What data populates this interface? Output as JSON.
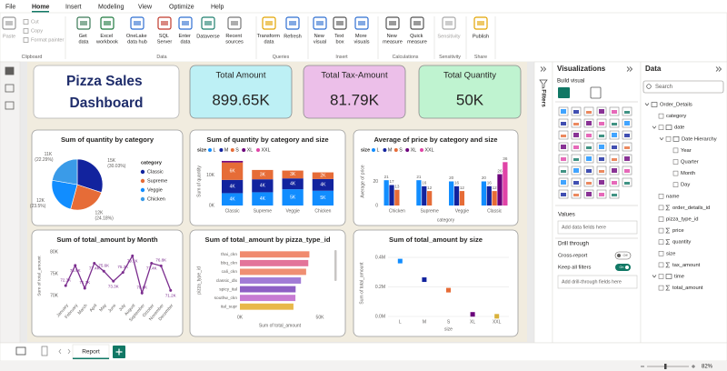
{
  "menu": [
    "File",
    "Home",
    "Insert",
    "Modeling",
    "View",
    "Optimize",
    "Help"
  ],
  "ribbon": {
    "buttons": [
      "Paste",
      "Cut",
      "Copy",
      "Format painter",
      "Get data",
      "Excel workbook",
      "OneLake data hub",
      "SQL Server",
      "Enter data",
      "Dataverse",
      "Recent sources",
      "Transform data",
      "Refresh",
      "New visual",
      "Text box",
      "More visuals",
      "New measure",
      "Quick measure",
      "Sensitivity",
      "Publish"
    ],
    "groups": [
      "Clipboard",
      "Data",
      "Queries",
      "Insert",
      "Calculations",
      "Sensitivity",
      "Share"
    ]
  },
  "dashboard": {
    "title": "Pizza Sales Dashboard",
    "cards": [
      {
        "label": "Total Amount",
        "value": "899.65K",
        "color": "#bdf0f5"
      },
      {
        "label": "Total Tax-Amount",
        "value": "81.79K",
        "color": "#ecbfe9"
      },
      {
        "label": "Total Quantity",
        "value": "50K",
        "color": "#bff3d0"
      }
    ]
  },
  "chart_data": [
    {
      "type": "pie",
      "title": "Sum of quantity by category",
      "legend_title": "category",
      "categories": [
        "Classic",
        "Supreme",
        "Veggie",
        "Chicken"
      ],
      "values": [
        14888,
        11987,
        11650,
        11050
      ],
      "value_labels": [
        "15K (30.03%)",
        "12K (24.18%)",
        "12K (23.5%)",
        "11K (22.29%)"
      ],
      "colors": [
        "#12239e",
        "#e66c37",
        "#118dff",
        "#3a9be8"
      ]
    },
    {
      "type": "column",
      "stacked": true,
      "title": "Sum of quantity by category and size",
      "legend_title": "size",
      "categories": [
        "Classic",
        "Supreme",
        "Veggie",
        "Chicken"
      ],
      "y_label": "Sum of quantity",
      "ylim": [
        0,
        16000
      ],
      "yticks": [
        {
          "value": 0,
          "label": "0K"
        },
        {
          "value": 10000,
          "label": "10K"
        }
      ],
      "grid": false,
      "series": [
        {
          "name": "L",
          "color": "#118dff",
          "values": [
            4100,
            4400,
            5400,
            4900
          ],
          "value_labels": [
            "4K",
            "4K",
            "5K",
            "5K"
          ]
        },
        {
          "name": "M",
          "color": "#12239e",
          "values": [
            4400,
            4300,
            3600,
            3900
          ],
          "value_labels": [
            "4K",
            "4K",
            "4K",
            "4K"
          ]
        },
        {
          "name": "S",
          "color": "#e66c37",
          "values": [
            5800,
            3100,
            2600,
            2200
          ],
          "value_labels": [
            "6K",
            "3K",
            "3K",
            "2K"
          ]
        },
        {
          "name": "XL",
          "color": "#6b007b",
          "values": [
            480,
            null,
            null,
            null
          ]
        },
        {
          "name": "XXL",
          "color": "#e044a7",
          "values": [
            28,
            null,
            null,
            null
          ]
        }
      ]
    },
    {
      "type": "column",
      "stacked": false,
      "title": "Average of price by category and size",
      "legend_title": "size",
      "categories": [
        "Chicken",
        "Supreme",
        "Veggie",
        "Classic"
      ],
      "x_label": "category",
      "y_label": "Average of price",
      "ylim": [
        0,
        40
      ],
      "yticks": [
        0,
        20
      ],
      "grid": false,
      "series": [
        {
          "name": "L",
          "color": "#118dff",
          "values": [
            21,
            21,
            20,
            20
          ]
        },
        {
          "name": "M",
          "color": "#12239e",
          "values": [
            17,
            16,
            16,
            16
          ]
        },
        {
          "name": "S",
          "color": "#e66c37",
          "values": [
            13,
            12,
            12,
            12
          ]
        },
        {
          "name": "XL",
          "color": "#6b007b",
          "values": [
            null,
            null,
            null,
            26
          ]
        },
        {
          "name": "XXL",
          "color": "#e044a7",
          "values": [
            null,
            null,
            null,
            36
          ]
        }
      ]
    },
    {
      "type": "line",
      "title": "Sum of total_amount by Month",
      "categories": [
        "January",
        "February",
        "March",
        "April",
        "May",
        "June",
        "July",
        "August",
        "September",
        "October",
        "November",
        "December"
      ],
      "values": [
        72300,
        76900,
        71700,
        77400,
        75600,
        73300,
        75300,
        79100,
        70600,
        77400,
        76800,
        71200
      ],
      "value_labels": [
        "72.3K",
        "76.9K",
        "71.7K",
        "77.4K",
        "75.6K",
        "73.3K",
        "75.3K",
        "79.1K",
        "70.6K",
        "77.4K",
        "76.8K",
        "71.2K"
      ],
      "color": "#7b2d8e",
      "y_label": "Sum of total_amount",
      "ylim": [
        69000,
        80000
      ],
      "yticks": [
        {
          "value": 70000,
          "label": "70K"
        },
        {
          "value": 75000,
          "label": "75K"
        },
        {
          "value": 80000,
          "label": "80K"
        }
      ],
      "grid": false
    },
    {
      "type": "bar",
      "title": "Sum of total_amount by pizza_type_id",
      "categories": [
        "thai_ckn",
        "bbq_ckn",
        "cali_ckn",
        "classic_dlx",
        "spicy_ital",
        "southw_ckn",
        "ital_supr"
      ],
      "values": [
        43434,
        42768,
        41410,
        38180,
        34831,
        34705,
        33476
      ],
      "colors": [
        "#f08a6e",
        "#e3749a",
        "#ef8f73",
        "#a17bd6",
        "#8e5fc4",
        "#c77bd3",
        "#e8b84a"
      ],
      "x_label": "Sum of total_amount",
      "y_label": "pizza_type_id",
      "xlim": [
        0,
        50000
      ],
      "xticks": [
        {
          "value": 0,
          "label": "0K"
        },
        {
          "value": 50000,
          "label": "50K"
        }
      ],
      "grid": false
    },
    {
      "type": "scatter",
      "title": "Sum of total_amount by size",
      "categories": [
        "L",
        "M",
        "S",
        "XL",
        "XXL"
      ],
      "values": [
        375319,
        249382,
        178076,
        14076,
        1007
      ],
      "colors": [
        "#118dff",
        "#12239e",
        "#e66c37",
        "#6b007b",
        "#d9b13b"
      ],
      "x_label": "size",
      "y_label": "Sum of total_amount",
      "ylim": [
        0,
        450000
      ],
      "yticks": [
        {
          "value": 0,
          "label": "0.0M"
        },
        {
          "value": 200000,
          "label": "0.2M"
        },
        {
          "value": 400000,
          "label": "0.4M"
        }
      ],
      "grid": true
    }
  ],
  "filters": {
    "title": "Filters"
  },
  "visualizations": {
    "title": "Visualizations",
    "build": "Build visual",
    "values_label": "Values",
    "values_placeholder": "Add data fields here",
    "drill": "Drill through",
    "cross_report": "Cross-report",
    "cross_report_state": "Off",
    "keep_filters": "Keep all filters",
    "keep_filters_state": "On",
    "drill_placeholder": "Add drill-through fields here"
  },
  "data_pane": {
    "title": "Data",
    "search": "Search",
    "fields": [
      "Order_Details",
      "category",
      "date",
      "Date Hierarchy",
      "Year",
      "Quarter",
      "Month",
      "Day",
      "name",
      "order_details_id",
      "pizza_type_id",
      "price",
      "quantity",
      "size",
      "tax_amount",
      "time",
      "total_amount"
    ]
  },
  "pages": {
    "tabs": [
      "Report"
    ]
  },
  "status": {
    "zoom": "82%"
  }
}
